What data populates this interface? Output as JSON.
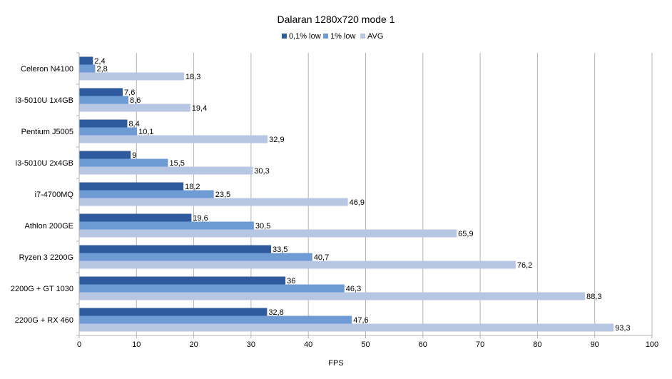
{
  "chart_data": {
    "type": "bar",
    "orientation": "horizontal",
    "title": "Dalaran 1280x720 mode 1",
    "xlabel": "FPS",
    "ylabel": "",
    "xlim": [
      0,
      100
    ],
    "x_ticks": [
      0,
      10,
      20,
      30,
      40,
      50,
      60,
      70,
      80,
      90,
      100
    ],
    "grid": "vertical",
    "legend_position": "top",
    "categories": [
      "Celeron N4100",
      "i3-5010U 1x4GB",
      "Pentium J5005",
      "i3-5010U 2x4GB",
      "i7-4700MQ",
      "Athlon 200GE",
      "Ryzen 3 2200G",
      "2200G + GT 1030",
      "2200G + RX 460"
    ],
    "series": [
      {
        "name": "0,1% low",
        "color": "#2f5b9e",
        "values": [
          2.4,
          7.6,
          8.4,
          9,
          18.2,
          19.6,
          33.5,
          36,
          32.8
        ],
        "labels": [
          "2,4",
          "7,6",
          "8,4",
          "9",
          "18,2",
          "19,6",
          "33,5",
          "36",
          "32,8"
        ]
      },
      {
        "name": "1% low",
        "color": "#6f9bd4",
        "values": [
          2.8,
          8.6,
          10.1,
          15.5,
          23.5,
          30.5,
          40.7,
          46.3,
          47.6
        ],
        "labels": [
          "2,8",
          "8,6",
          "10,1",
          "15,5",
          "23,5",
          "30,5",
          "40,7",
          "46,3",
          "47,6"
        ]
      },
      {
        "name": "AVG",
        "color": "#b7c7e3",
        "values": [
          18.3,
          19.4,
          32.9,
          30.3,
          46.9,
          65.9,
          76.2,
          88.3,
          93.3
        ],
        "labels": [
          "18,3",
          "19,4",
          "32,9",
          "30,3",
          "46,9",
          "65,9",
          "76,2",
          "88,3",
          "93,3"
        ]
      }
    ]
  }
}
